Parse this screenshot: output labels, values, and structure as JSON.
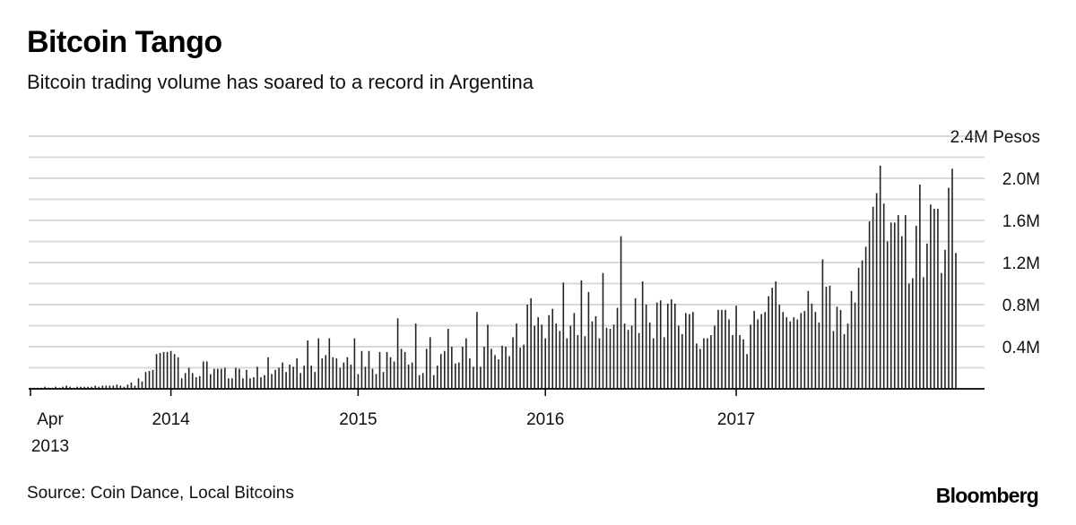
{
  "header": {
    "title": "Bitcoin Tango",
    "subtitle": "Bitcoin trading volume has soared to a record in Argentina"
  },
  "footer": {
    "source": "Source: Coin Dance, Local Bitcoins",
    "brand": "Bloomberg"
  },
  "colors": {
    "bars": "#222222",
    "grid": "#d9d9d9",
    "axis": "#000000"
  },
  "chart_data": {
    "type": "bar",
    "unit": "Pesos",
    "ylim": [
      0,
      2.4
    ],
    "grid": true,
    "y_ticks": [
      {
        "value": 0.4,
        "label": "0.4M"
      },
      {
        "value": 0.8,
        "label": "0.8M"
      },
      {
        "value": 1.2,
        "label": "1.2M"
      },
      {
        "value": 1.6,
        "label": "1.6M"
      },
      {
        "value": 2.0,
        "label": "2.0M"
      },
      {
        "value": 2.4,
        "label": "2.4M Pesos"
      }
    ],
    "x_ticks": [
      {
        "week": 0,
        "label": "Apr",
        "label2": "2013"
      },
      {
        "week": 39,
        "label": "2014"
      },
      {
        "week": 91,
        "label": "2015"
      },
      {
        "week": 143,
        "label": "2016"
      },
      {
        "week": 196,
        "label": "2017"
      }
    ],
    "values": [
      0.01,
      0.01,
      0.01,
      0.01,
      0.02,
      0.01,
      0.01,
      0.02,
      0.01,
      0.02,
      0.03,
      0.02,
      0.01,
      0.02,
      0.02,
      0.02,
      0.02,
      0.02,
      0.03,
      0.02,
      0.03,
      0.03,
      0.03,
      0.03,
      0.04,
      0.03,
      0.02,
      0.04,
      0.06,
      0.03,
      0.1,
      0.07,
      0.16,
      0.17,
      0.18,
      0.33,
      0.34,
      0.35,
      0.35,
      0.36,
      0.33,
      0.3,
      0.1,
      0.15,
      0.2,
      0.15,
      0.11,
      0.12,
      0.26,
      0.26,
      0.14,
      0.19,
      0.19,
      0.19,
      0.2,
      0.1,
      0.1,
      0.2,
      0.19,
      0.1,
      0.18,
      0.1,
      0.11,
      0.21,
      0.11,
      0.13,
      0.3,
      0.14,
      0.18,
      0.2,
      0.25,
      0.16,
      0.23,
      0.21,
      0.29,
      0.15,
      0.22,
      0.46,
      0.22,
      0.16,
      0.48,
      0.29,
      0.32,
      0.48,
      0.3,
      0.29,
      0.2,
      0.25,
      0.3,
      0.23,
      0.48,
      0.14,
      0.36,
      0.21,
      0.36,
      0.19,
      0.14,
      0.35,
      0.16,
      0.35,
      0.3,
      0.26,
      0.67,
      0.38,
      0.35,
      0.23,
      0.25,
      0.62,
      0.13,
      0.15,
      0.38,
      0.49,
      0.13,
      0.22,
      0.33,
      0.36,
      0.57,
      0.4,
      0.24,
      0.25,
      0.4,
      0.48,
      0.29,
      0.21,
      0.73,
      0.21,
      0.4,
      0.61,
      0.38,
      0.32,
      0.28,
      0.41,
      0.4,
      0.31,
      0.49,
      0.62,
      0.39,
      0.42,
      0.8,
      0.86,
      0.6,
      0.68,
      0.61,
      0.48,
      0.7,
      0.76,
      0.62,
      0.55,
      1.01,
      0.48,
      0.6,
      0.72,
      0.51,
      1.03,
      0.5,
      0.92,
      0.64,
      0.69,
      0.48,
      1.1,
      0.58,
      0.57,
      0.61,
      0.77,
      1.45,
      0.62,
      0.56,
      0.6,
      0.86,
      0.53,
      1.02,
      0.8,
      0.63,
      0.48,
      0.82,
      0.84,
      0.49,
      0.81,
      0.85,
      0.81,
      0.6,
      0.52,
      0.72,
      0.71,
      0.73,
      0.43,
      0.38,
      0.48,
      0.48,
      0.51,
      0.6,
      0.75,
      0.75,
      0.75,
      0.66,
      0.51,
      0.79,
      0.51,
      0.47,
      0.33,
      0.61,
      0.74,
      0.66,
      0.71,
      0.73,
      0.88,
      0.96,
      1.02,
      0.8,
      0.73,
      0.68,
      0.64,
      0.68,
      0.66,
      0.72,
      0.74,
      0.93,
      0.81,
      0.73,
      0.63,
      1.23,
      0.97,
      0.98,
      0.55,
      0.78,
      0.75,
      0.52,
      0.62,
      0.93,
      0.82,
      1.15,
      1.22,
      1.35,
      1.59,
      1.73,
      1.86,
      2.12,
      1.76,
      1.4,
      1.58,
      1.58,
      1.65,
      1.45,
      1.65,
      1.0,
      1.05,
      1.55,
      1.94,
      1.06,
      1.38,
      1.75,
      1.71,
      1.71,
      1.1,
      1.32,
      1.91,
      2.09,
      1.29
    ]
  }
}
